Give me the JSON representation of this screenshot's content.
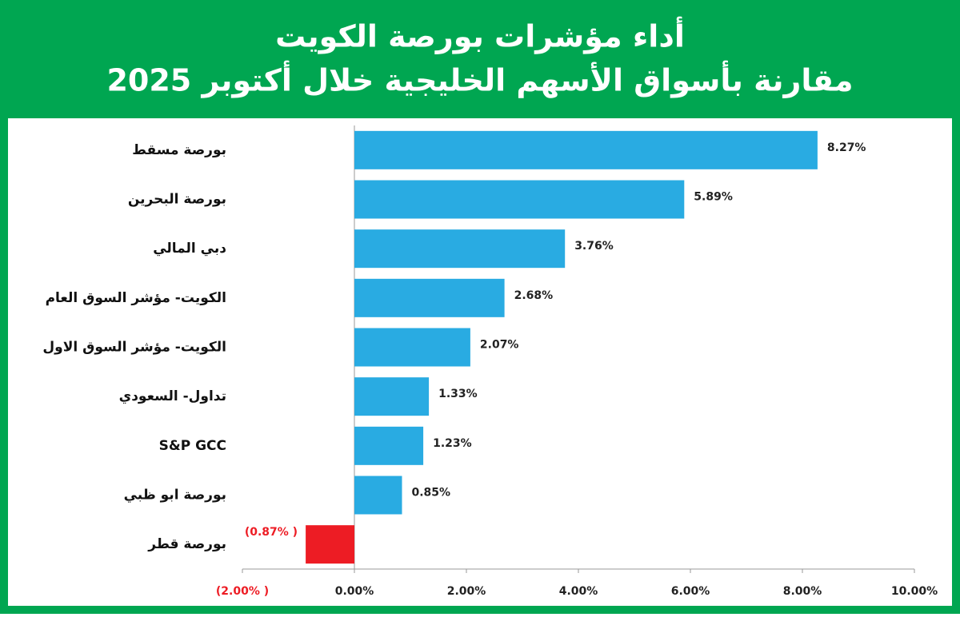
{
  "chart_data": {
    "type": "barh",
    "title": "أداء مؤشرات بورصة الكويت",
    "subtitle": "مقارنة بأسواق الأسهم الخليجية خلال أكتوبر 2025",
    "categories": [
      "بورصة مسقط",
      "بورصة البحرين",
      "دبي المالي",
      "الكويت- مؤشر السوق العام",
      "الكويت- مؤشر السوق الاول",
      "تداول- السعودي",
      "S&P GCC",
      "بورصة ابو ظبي",
      "بورصة قطر"
    ],
    "values": [
      8.27,
      5.89,
      3.76,
      2.68,
      2.07,
      1.33,
      1.23,
      0.85,
      -0.87
    ],
    "value_labels": [
      "8.27%",
      "5.89%",
      "3.76%",
      "2.68%",
      "2.07%",
      "1.33%",
      "1.23%",
      "0.85%",
      "(0.87% )"
    ],
    "color": "#29abe2",
    "negative_color": "#ed1c24",
    "xlim": [
      -2,
      10
    ],
    "xticks": [
      {
        "value": -2,
        "label": "(2.00% )"
      },
      {
        "value": 0,
        "label": "0.00%"
      },
      {
        "value": 2,
        "label": "2.00%"
      },
      {
        "value": 4,
        "label": "4.00%"
      },
      {
        "value": 6,
        "label": "6.00%"
      },
      {
        "value": 8,
        "label": "8.00%"
      },
      {
        "value": 10,
        "label": "10.00%"
      }
    ],
    "grid": false
  }
}
